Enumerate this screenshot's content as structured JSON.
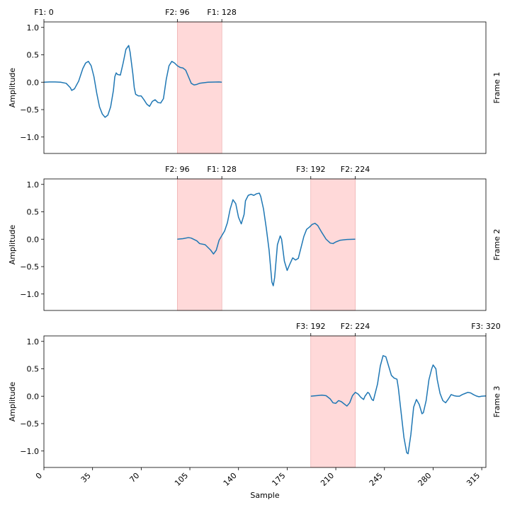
{
  "chart_data": {
    "type": "line",
    "xlabel": "Sample",
    "ylabel": "Amplitude",
    "xlim": [
      0,
      318
    ],
    "ylim": [
      -1.3,
      1.1
    ],
    "xticks": [
      0,
      35,
      70,
      105,
      140,
      175,
      210,
      245,
      280,
      315
    ],
    "yticks": [
      1.0,
      0.5,
      0.0,
      -0.5,
      -1.0
    ],
    "ytick_labels": [
      "1.0",
      "0.5",
      "0.0",
      "−0.5",
      "−1.0"
    ],
    "grid": false,
    "panels": [
      {
        "name": "Frame 1",
        "markers": [
          {
            "label": "F1: 0",
            "x": 0
          },
          {
            "label": "F2: 96",
            "x": 96
          },
          {
            "label": "F1: 128",
            "x": 128
          }
        ],
        "overlaps": [
          [
            96,
            128
          ]
        ],
        "points": [
          [
            0,
            0
          ],
          [
            4,
            0.005
          ],
          [
            8,
            0.005
          ],
          [
            12,
            0
          ],
          [
            16,
            -0.02
          ],
          [
            19,
            -0.1
          ],
          [
            20,
            -0.15
          ],
          [
            22,
            -0.12
          ],
          [
            25,
            0.02
          ],
          [
            28,
            0.25
          ],
          [
            30,
            0.35
          ],
          [
            32,
            0.38
          ],
          [
            34,
            0.3
          ],
          [
            36,
            0.1
          ],
          [
            38,
            -0.2
          ],
          [
            40,
            -0.45
          ],
          [
            42,
            -0.58
          ],
          [
            44,
            -0.64
          ],
          [
            46,
            -0.6
          ],
          [
            48,
            -0.45
          ],
          [
            50,
            -0.15
          ],
          [
            51,
            0.1
          ],
          [
            52,
            0.17
          ],
          [
            53,
            0.14
          ],
          [
            55,
            0.13
          ],
          [
            57,
            0.35
          ],
          [
            59,
            0.6
          ],
          [
            61,
            0.67
          ],
          [
            62,
            0.55
          ],
          [
            64,
            0.15
          ],
          [
            65,
            -0.1
          ],
          [
            66,
            -0.22
          ],
          [
            68,
            -0.25
          ],
          [
            70,
            -0.25
          ],
          [
            72,
            -0.32
          ],
          [
            74,
            -0.4
          ],
          [
            76,
            -0.44
          ],
          [
            78,
            -0.35
          ],
          [
            80,
            -0.32
          ],
          [
            82,
            -0.37
          ],
          [
            84,
            -0.38
          ],
          [
            86,
            -0.3
          ],
          [
            88,
            0.05
          ],
          [
            90,
            0.3
          ],
          [
            92,
            0.38
          ],
          [
            94,
            0.35
          ],
          [
            96,
            0.3
          ],
          [
            98,
            0.27
          ],
          [
            100,
            0.26
          ],
          [
            102,
            0.22
          ],
          [
            104,
            0.1
          ],
          [
            106,
            -0.02
          ],
          [
            108,
            -0.05
          ],
          [
            110,
            -0.04
          ],
          [
            112,
            -0.02
          ],
          [
            118,
            0
          ],
          [
            126,
            0.005
          ],
          [
            128,
            0
          ]
        ]
      },
      {
        "name": "Frame 2",
        "markers": [
          {
            "label": "F2: 96",
            "x": 96
          },
          {
            "label": "F1: 128",
            "x": 128
          },
          {
            "label": "F3: 192",
            "x": 192
          },
          {
            "label": "F2: 224",
            "x": 224
          }
        ],
        "overlaps": [
          [
            96,
            128
          ],
          [
            192,
            224
          ]
        ],
        "points": [
          [
            96,
            0
          ],
          [
            100,
            0.01
          ],
          [
            104,
            0.03
          ],
          [
            106,
            0.02
          ],
          [
            110,
            -0.03
          ],
          [
            112,
            -0.08
          ],
          [
            116,
            -0.1
          ],
          [
            120,
            -0.2
          ],
          [
            122,
            -0.27
          ],
          [
            124,
            -0.2
          ],
          [
            126,
            -0.02
          ],
          [
            130,
            0.15
          ],
          [
            132,
            0.3
          ],
          [
            134,
            0.55
          ],
          [
            136,
            0.72
          ],
          [
            138,
            0.65
          ],
          [
            140,
            0.4
          ],
          [
            142,
            0.28
          ],
          [
            144,
            0.45
          ],
          [
            145,
            0.7
          ],
          [
            147,
            0.8
          ],
          [
            149,
            0.82
          ],
          [
            151,
            0.8
          ],
          [
            153,
            0.83
          ],
          [
            155,
            0.84
          ],
          [
            156,
            0.78
          ],
          [
            158,
            0.55
          ],
          [
            160,
            0.2
          ],
          [
            162,
            -0.2
          ],
          [
            164,
            -0.78
          ],
          [
            165,
            -0.85
          ],
          [
            166,
            -0.7
          ],
          [
            168,
            -0.1
          ],
          [
            170,
            0.06
          ],
          [
            171,
            0
          ],
          [
            173,
            -0.4
          ],
          [
            175,
            -0.57
          ],
          [
            177,
            -0.45
          ],
          [
            179,
            -0.34
          ],
          [
            181,
            -0.38
          ],
          [
            183,
            -0.35
          ],
          [
            185,
            -0.15
          ],
          [
            187,
            0.05
          ],
          [
            189,
            0.18
          ],
          [
            191,
            0.22
          ],
          [
            193,
            0.27
          ],
          [
            195,
            0.29
          ],
          [
            197,
            0.25
          ],
          [
            200,
            0.12
          ],
          [
            203,
            0
          ],
          [
            206,
            -0.07
          ],
          [
            208,
            -0.08
          ],
          [
            210,
            -0.05
          ],
          [
            213,
            -0.02
          ],
          [
            218,
            -0.005
          ],
          [
            224,
            0
          ]
        ]
      },
      {
        "name": "Frame 3",
        "markers": [
          {
            "label": "F3: 192",
            "x": 192
          },
          {
            "label": "F2: 224",
            "x": 224
          },
          {
            "label": "F3: 320",
            "x": 318
          }
        ],
        "overlaps": [
          [
            192,
            224
          ]
        ],
        "points": [
          [
            192,
            0
          ],
          [
            196,
            0.01
          ],
          [
            200,
            0.02
          ],
          [
            203,
            0.01
          ],
          [
            206,
            -0.05
          ],
          [
            208,
            -0.12
          ],
          [
            210,
            -0.13
          ],
          [
            212,
            -0.08
          ],
          [
            214,
            -0.1
          ],
          [
            216,
            -0.14
          ],
          [
            218,
            -0.18
          ],
          [
            220,
            -0.12
          ],
          [
            222,
            0.01
          ],
          [
            224,
            0.07
          ],
          [
            226,
            0.04
          ],
          [
            228,
            -0.02
          ],
          [
            230,
            -0.06
          ],
          [
            231,
            0
          ],
          [
            233,
            0.07
          ],
          [
            234,
            0.05
          ],
          [
            236,
            -0.06
          ],
          [
            237,
            -0.08
          ],
          [
            240,
            0.22
          ],
          [
            242,
            0.55
          ],
          [
            244,
            0.74
          ],
          [
            246,
            0.72
          ],
          [
            248,
            0.55
          ],
          [
            250,
            0.38
          ],
          [
            252,
            0.33
          ],
          [
            254,
            0.31
          ],
          [
            255,
            0.15
          ],
          [
            257,
            -0.3
          ],
          [
            259,
            -0.75
          ],
          [
            261,
            -1.03
          ],
          [
            262,
            -1.05
          ],
          [
            264,
            -0.7
          ],
          [
            266,
            -0.2
          ],
          [
            268,
            -0.06
          ],
          [
            270,
            -0.15
          ],
          [
            272,
            -0.32
          ],
          [
            273,
            -0.3
          ],
          [
            275,
            -0.08
          ],
          [
            277,
            0.3
          ],
          [
            279,
            0.5
          ],
          [
            280,
            0.57
          ],
          [
            282,
            0.5
          ],
          [
            283,
            0.3
          ],
          [
            285,
            0.05
          ],
          [
            287,
            -0.08
          ],
          [
            289,
            -0.12
          ],
          [
            291,
            -0.05
          ],
          [
            293,
            0.03
          ],
          [
            295,
            0.01
          ],
          [
            297,
            0
          ],
          [
            299,
            0
          ],
          [
            301,
            0.03
          ],
          [
            303,
            0.05
          ],
          [
            305,
            0.07
          ],
          [
            307,
            0.06
          ],
          [
            309,
            0.03
          ],
          [
            311,
            0.005
          ],
          [
            313,
            -0.01
          ],
          [
            315,
            0
          ],
          [
            318,
            0.005
          ]
        ]
      }
    ]
  }
}
